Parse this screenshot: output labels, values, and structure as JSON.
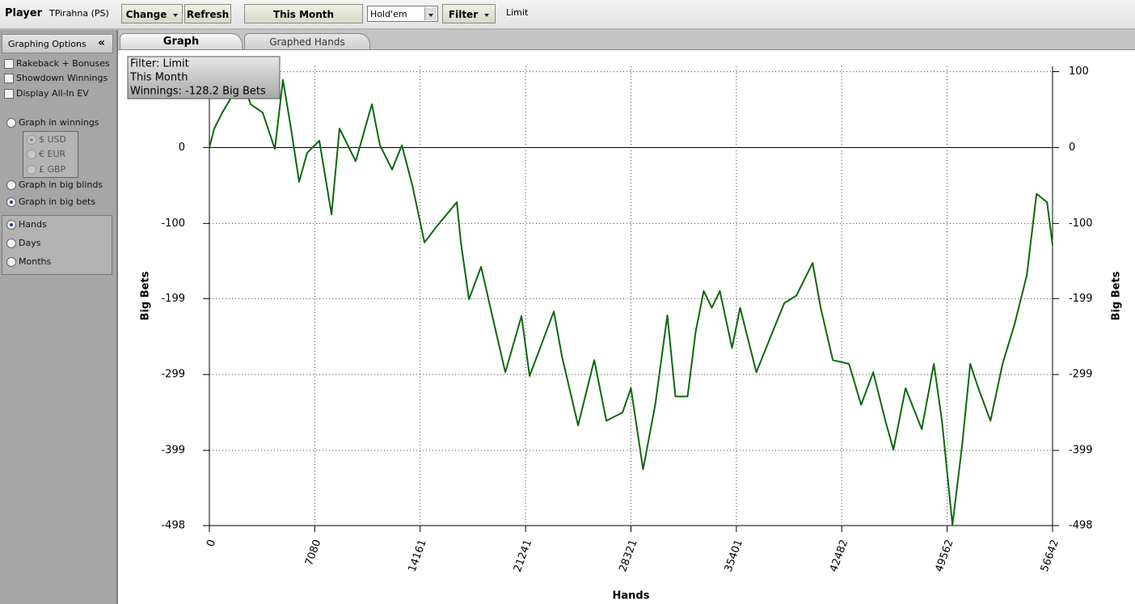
{
  "toolbar": {
    "player_label": "Player",
    "player": "TPirahna (PS)",
    "change": "Change",
    "refresh": "Refresh",
    "period": "This Month",
    "game": "Hold'em",
    "filter": "Filter",
    "filter_value": "Limit"
  },
  "tabs": [
    {
      "label": "Graph",
      "active": true
    },
    {
      "label": "Graphed Hands",
      "active": false
    }
  ],
  "sidebar": {
    "title": "Graphing Options",
    "collapse": "«",
    "checkboxes": [
      {
        "label": "Rakeback + Bonuses",
        "checked": false
      },
      {
        "label": "Showdown Winnings",
        "checked": false
      },
      {
        "label": "Display All-In EV",
        "checked": false
      }
    ],
    "units": [
      {
        "label": "Graph in winnings",
        "checked": false
      },
      {
        "label": "Graph in big blinds",
        "checked": false
      },
      {
        "label": "Graph in big bets",
        "checked": true
      }
    ],
    "currencies": [
      {
        "label": "$ USD",
        "checked": true
      },
      {
        "label": "€ EUR",
        "checked": false
      },
      {
        "label": "£ GBP",
        "checked": false
      }
    ],
    "axis": [
      {
        "label": "Hands",
        "checked": true
      },
      {
        "label": "Days",
        "checked": false
      },
      {
        "label": "Months",
        "checked": false
      }
    ]
  },
  "chart_data": {
    "type": "line",
    "annotation": [
      "Filter: Limit",
      "This Month",
      "Winnings: -128.2 Big Bets"
    ],
    "xlabel": "Hands",
    "ylabel": "Big Bets",
    "color": "#0b690b",
    "grid": true,
    "xlim": [
      0,
      56642
    ],
    "ylim": [
      -498,
      107
    ],
    "xticks": [
      0,
      7080,
      14161,
      21241,
      28321,
      35401,
      42482,
      49562,
      56642
    ],
    "yticks": [
      100,
      0,
      -100,
      -199,
      -299,
      -399,
      -498
    ],
    "x": [
      0,
      326,
      869,
      1684,
      2227,
      2770,
      3585,
      4400,
      4943,
      5486,
      6030,
      6573,
      7387,
      8207,
      8745,
      9832,
      10918,
      11461,
      12276,
      12928,
      13634,
      14449,
      15264,
      16621,
      16893,
      17436,
      18251,
      19066,
      19880,
      20967,
      21510,
      23140,
      23683,
      24769,
      25856,
      26671,
      27757,
      28321,
      29137,
      29952,
      30767,
      31310,
      32125,
      32668,
      33211,
      33754,
      34297,
      35112,
      35655,
      36742,
      37828,
      38622,
      39437,
      40523,
      41066,
      41881,
      42967,
      43781,
      44596,
      45411,
      45954,
      46769,
      47855,
      48670,
      49213,
      49919,
      50570,
      51113,
      51656,
      52471,
      53286,
      54101,
      54916,
      55568,
      56274,
      56642
    ],
    "values": [
      0,
      25,
      46,
      73,
      89,
      57,
      46,
      -2,
      89,
      25,
      -45,
      -7,
      9,
      -88,
      25,
      -18,
      57,
      3,
      -29,
      3,
      -50,
      -125,
      -104,
      -72,
      -125,
      -200,
      -157,
      -227,
      -296,
      -222,
      -301,
      -216,
      -275,
      -366,
      -280,
      -360,
      -349,
      -317,
      -424,
      -339,
      -221,
      -328,
      -328,
      -243,
      -189,
      -211,
      -189,
      -264,
      -211,
      -296,
      -243,
      -205,
      -195,
      -152,
      -211,
      -280,
      -285,
      -339,
      -296,
      -360,
      -398,
      -317,
      -371,
      -285,
      -360,
      -497,
      -392,
      -285,
      -317,
      -360,
      -285,
      -232,
      -168,
      -61,
      -72,
      -128.2
    ]
  }
}
